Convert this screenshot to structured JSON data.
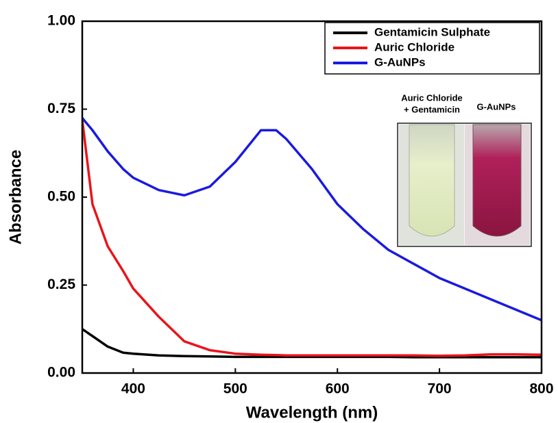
{
  "chart_data": {
    "type": "line",
    "x_label": "Wavelength (nm)",
    "y_label": "Absorbance",
    "x": [
      350,
      360,
      375,
      390,
      400,
      425,
      450,
      475,
      500,
      525,
      540,
      550,
      575,
      600,
      625,
      650,
      675,
      700,
      725,
      750,
      775,
      800
    ],
    "series": [
      {
        "name": "Gentamicin Sulphate",
        "color": "#000000",
        "values": [
          0.125,
          0.105,
          0.075,
          0.058,
          0.055,
          0.05,
          0.048,
          0.047,
          0.046,
          0.046,
          0.046,
          0.046,
          0.046,
          0.046,
          0.046,
          0.046,
          0.045,
          0.045,
          0.045,
          0.045,
          0.045,
          0.045
        ]
      },
      {
        "name": "Auric Chloride",
        "color": "#e8141b",
        "values": [
          0.72,
          0.48,
          0.36,
          0.29,
          0.24,
          0.16,
          0.09,
          0.065,
          0.055,
          0.052,
          0.051,
          0.05,
          0.05,
          0.05,
          0.05,
          0.05,
          0.05,
          0.049,
          0.05,
          0.053,
          0.053,
          0.052
        ]
      },
      {
        "name": "G-AuNPs",
        "color": "#1a1ae0",
        "values": [
          0.725,
          0.69,
          0.63,
          0.58,
          0.555,
          0.52,
          0.505,
          0.53,
          0.6,
          0.69,
          0.69,
          0.665,
          0.58,
          0.48,
          0.41,
          0.35,
          0.31,
          0.27,
          0.24,
          0.21,
          0.18,
          0.15
        ]
      }
    ],
    "xlim": [
      350,
      800
    ],
    "xticks": [
      400,
      500,
      600,
      700,
      800
    ],
    "ylim": [
      0,
      1
    ],
    "yticks": [
      {
        "value": 0,
        "label": "0.00"
      },
      {
        "value": 0.25,
        "label": "0.25"
      },
      {
        "value": 0.5,
        "label": "0.50"
      },
      {
        "value": 0.75,
        "label": "0.75"
      },
      {
        "value": 1,
        "label": "1.00"
      }
    ],
    "legend": "upper right",
    "annotations": [
      "Auric Chloride",
      "+ Gentamicin",
      "G-AuNPs"
    ]
  }
}
